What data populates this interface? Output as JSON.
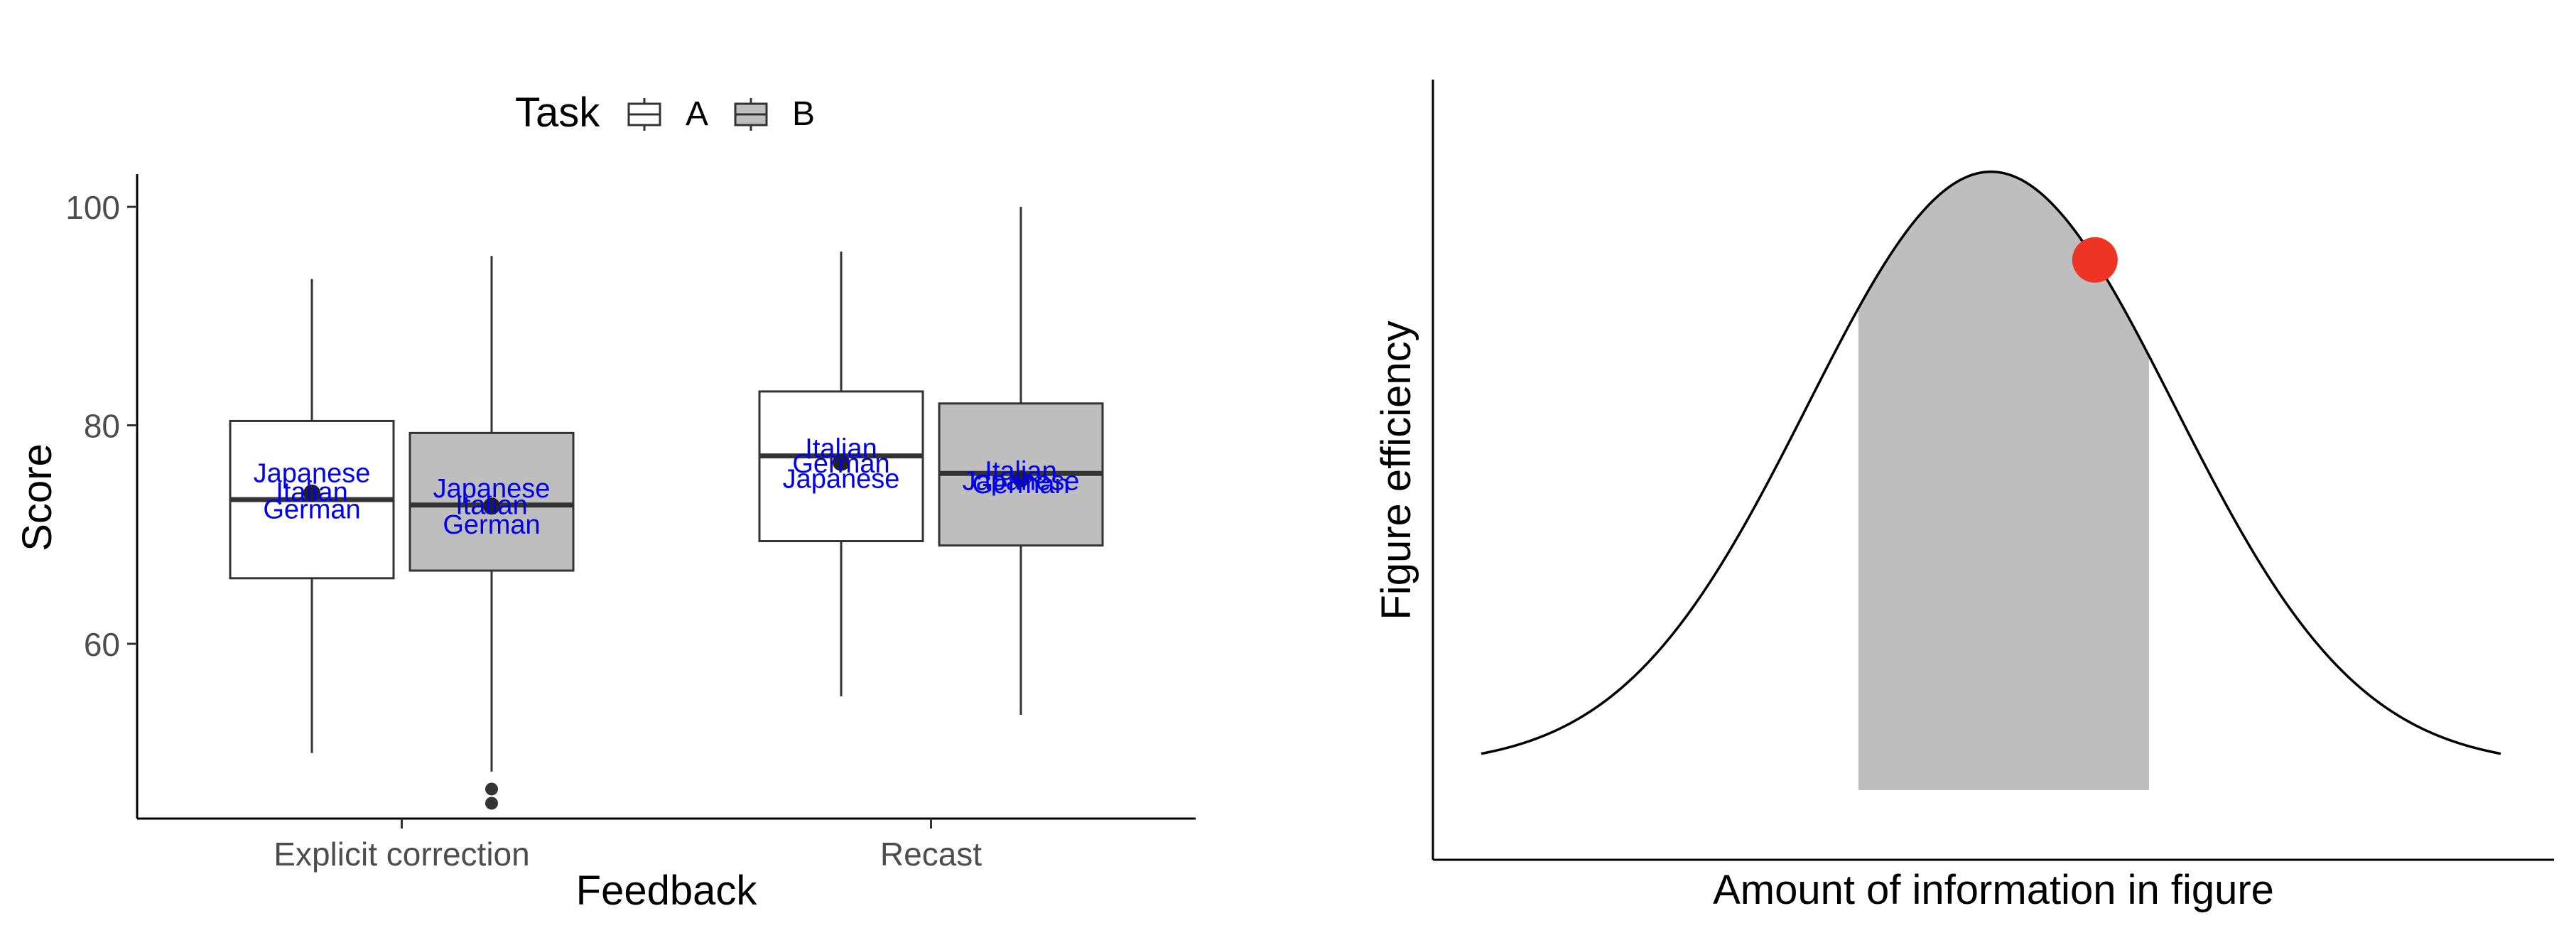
{
  "chart_data": [
    {
      "type": "boxplot",
      "xlabel": "Feedback",
      "ylabel": "Score",
      "categories": [
        "Explicit correction",
        "Recast"
      ],
      "ylim": [
        44,
        103
      ],
      "yticks": [
        60,
        80,
        100
      ],
      "legend": {
        "title": "Task",
        "placement": "top",
        "entries": [
          {
            "label": "A",
            "color": "#ffffff"
          },
          {
            "label": "B",
            "color": "#bebebe"
          }
        ]
      },
      "series": [
        {
          "name": "A",
          "color": "#ffffff",
          "boxes": [
            {
              "category": "Explicit correction",
              "whisker_low": 50,
              "q1": 66,
              "median": 73.2,
              "q3": 80.4,
              "whisker_high": 93.4,
              "mean": 73.8,
              "outliers": [],
              "labels": [
                {
                  "text": "Japanese",
                  "y": 75.7
                },
                {
                  "text": "Italian",
                  "y": 74.0
                },
                {
                  "text": "German",
                  "y": 72.4
                }
              ]
            },
            {
              "category": "Recast",
              "whisker_low": 55.2,
              "q1": 69.4,
              "median": 77.2,
              "q3": 83.1,
              "whisker_high": 95.9,
              "mean": 76.6,
              "outliers": [],
              "labels": [
                {
                  "text": "Italian",
                  "y": 78.0
                },
                {
                  "text": "German",
                  "y": 76.6
                },
                {
                  "text": "Japanese",
                  "y": 75.2
                }
              ]
            }
          ]
        },
        {
          "name": "B",
          "color": "#bebebe",
          "boxes": [
            {
              "category": "Explicit correction",
              "whisker_low": 48.3,
              "q1": 66.7,
              "median": 72.7,
              "q3": 79.3,
              "whisker_high": 95.5,
              "mean": 72.6,
              "outliers": [
                46.7,
                45.4
              ],
              "labels": [
                {
                  "text": "Japanese",
                  "y": 74.3
                },
                {
                  "text": "Italian",
                  "y": 72.8
                },
                {
                  "text": "German",
                  "y": 71.0
                }
              ]
            },
            {
              "category": "Recast",
              "whisker_low": 53.5,
              "q1": 69.0,
              "median": 75.6,
              "q3": 82.0,
              "whisker_high": 100.0,
              "mean": 75.1,
              "outliers": [],
              "labels": [
                {
                  "text": "Italian",
                  "y": 75.9
                },
                {
                  "text": "Japanese",
                  "y": 75.0
                },
                {
                  "text": "German",
                  "y": 74.7
                }
              ]
            }
          ]
        }
      ]
    },
    {
      "type": "area",
      "xlabel": "Amount of information in figure",
      "ylabel": "Figure efficiency",
      "curve": {
        "shape": "gaussian",
        "peak": 0.5,
        "spread": 0.18,
        "baseline": 0.08,
        "height": 0.92
      },
      "shaded_region": {
        "from": 0.37,
        "to": 0.655
      },
      "highlight_point": {
        "x": 0.602,
        "color": "#ee3524"
      }
    }
  ]
}
